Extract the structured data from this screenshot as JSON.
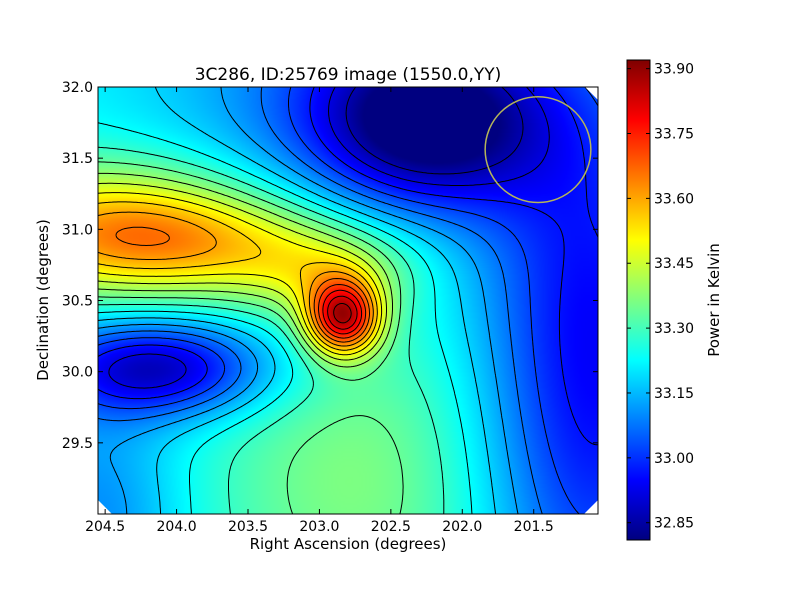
{
  "chart_data": {
    "type": "heatmap",
    "title": "3C286, ID:25769 image (1550.0,YY)",
    "xlabel": "Right Ascension (degrees)",
    "ylabel": "Declination (degrees)",
    "xlim": [
      204.55,
      201.05
    ],
    "ylim": [
      29.0,
      32.0
    ],
    "x_ticks": [
      "204.5",
      "204.0",
      "203.5",
      "203.0",
      "202.5",
      "202.0",
      "201.5"
    ],
    "y_ticks": [
      "29.5",
      "30.0",
      "30.5",
      "31.0",
      "31.5",
      "32.0"
    ],
    "grid": false,
    "colormap": "jet",
    "colorbar": {
      "label": "Power in Kelvin",
      "range": [
        32.81,
        33.92
      ],
      "ticks": [
        "32.85",
        "33.00",
        "33.15",
        "33.30",
        "33.45",
        "33.60",
        "33.75",
        "33.90"
      ]
    },
    "contour_levels": 21,
    "features": [
      {
        "type": "peak",
        "ra": 202.78,
        "dec": 30.4,
        "value": 33.92
      },
      {
        "type": "minimum",
        "ra": 202.4,
        "dec": 31.85,
        "value": 32.82
      }
    ],
    "beam_circle": {
      "ra": 201.47,
      "dec": 31.56,
      "radius_deg": 0.37,
      "color": "#b5b55a"
    }
  }
}
